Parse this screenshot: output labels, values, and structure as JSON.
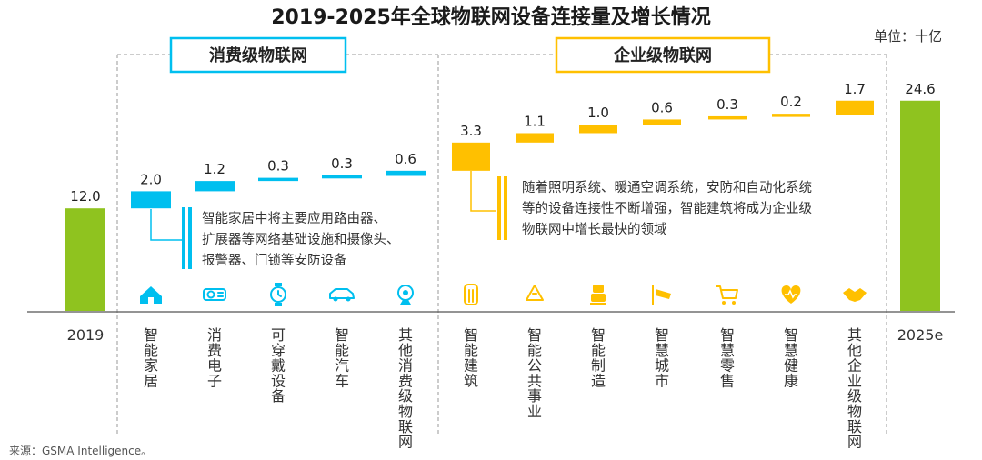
{
  "chart_data": {
    "type": "waterfall",
    "title": "2019-2025年全球物联网设备连接量及增长情况",
    "unit_label": "单位：十亿",
    "start": {
      "label": "2019",
      "value": 12.0,
      "value_label": "12.0"
    },
    "end": {
      "label": "2025e",
      "value": 24.6,
      "value_label": "24.6"
    },
    "groups": [
      {
        "name": "消费级物联网",
        "color": "#00bfef",
        "note_lines": [
          "智能家居中将主要应用路由器、",
          "扩展器等网络基础设施和摄像头、",
          "报警器、门锁等安防设备"
        ],
        "items": [
          {
            "label": "智能家居",
            "value": 2.0,
            "value_label": "2.0",
            "icon": "house-icon"
          },
          {
            "label": "消费电子",
            "value": 1.2,
            "value_label": "1.2",
            "icon": "projector-icon"
          },
          {
            "label": "可穿戴设备",
            "value": 0.3,
            "value_label": "0.3",
            "icon": "watch-icon"
          },
          {
            "label": "智能汽车",
            "value": 0.3,
            "value_label": "0.3",
            "icon": "car-icon"
          },
          {
            "label": "其他消费级物联网",
            "value": 0.6,
            "value_label": "0.6",
            "icon": "webcam-icon"
          }
        ]
      },
      {
        "name": "企业级物联网",
        "color": "#ffc000",
        "note_lines": [
          "随着照明系统、暖通空调系统，安防和自动化系统",
          "等的设备连接性不断增强，智能建筑将成为企业级",
          "物联网中增长最快的领域"
        ],
        "items": [
          {
            "label": "智能建筑",
            "value": 3.3,
            "value_label": "3.3",
            "icon": "building-icon"
          },
          {
            "label": "智能公共事业",
            "value": 1.1,
            "value_label": "1.1",
            "icon": "recycle-icon"
          },
          {
            "label": "智能制造",
            "value": 1.0,
            "value_label": "1.0",
            "icon": "robot-icon"
          },
          {
            "label": "智慧城市",
            "value": 0.6,
            "value_label": "0.6",
            "icon": "camera-icon"
          },
          {
            "label": "智慧零售",
            "value": 0.3,
            "value_label": "0.3",
            "icon": "cart-icon"
          },
          {
            "label": "智慧健康",
            "value": 0.2,
            "value_label": "0.2",
            "icon": "heart-icon"
          },
          {
            "label": "其他企业级物联网",
            "value": 1.7,
            "value_label": "1.7",
            "icon": "handshake-icon"
          }
        ]
      }
    ],
    "total_color": "#8fc31f",
    "source": "来源：GSMA Intelligence。"
  }
}
